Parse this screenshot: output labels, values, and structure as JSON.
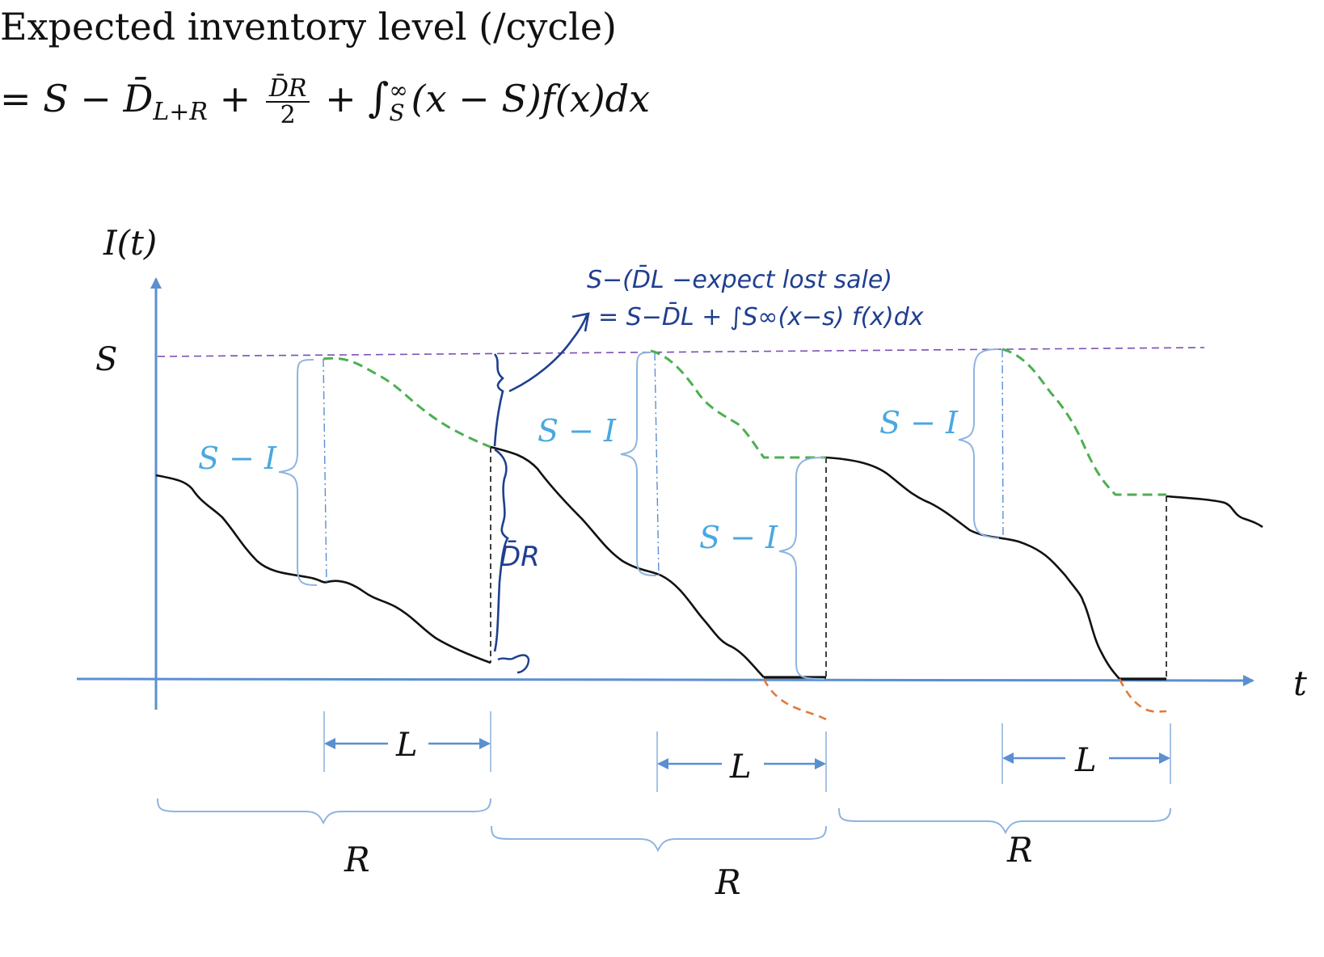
{
  "formula": {
    "line1": "Expected inventory level (/cycle)",
    "eq": "= S − ",
    "dbar": "D̄",
    "sub": "L+R",
    "plus1": " + ",
    "frac_num": "D̄R",
    "frac_den": "2",
    "plus2": " + ",
    "integral": "∫",
    "upper": "∞",
    "lower": "S",
    "integrand": "(x − S)f(x)dx"
  },
  "axes": {
    "y_label": "I(t)",
    "x_label": "t",
    "s_level": "S"
  },
  "labels": {
    "s_minus_i": "S − I",
    "lead_time": "L",
    "review_period": "R"
  },
  "annotations": {
    "line1": "S−(D̄L −expect lost sale)",
    "line2": "= S−D̄L + ∫S∞(x−s) f(x)dx",
    "dbar_r": "D̄R"
  },
  "colors": {
    "inventory": "#111111",
    "order_up_to": "#4caf50",
    "lost_sales": "#e07b39",
    "s_line": "#7a4fb5",
    "axis": "#5b8fd0",
    "brace": "#5b8fd0",
    "label_blue": "#4aa8e0",
    "handwriting": "#1f3f8f"
  }
}
